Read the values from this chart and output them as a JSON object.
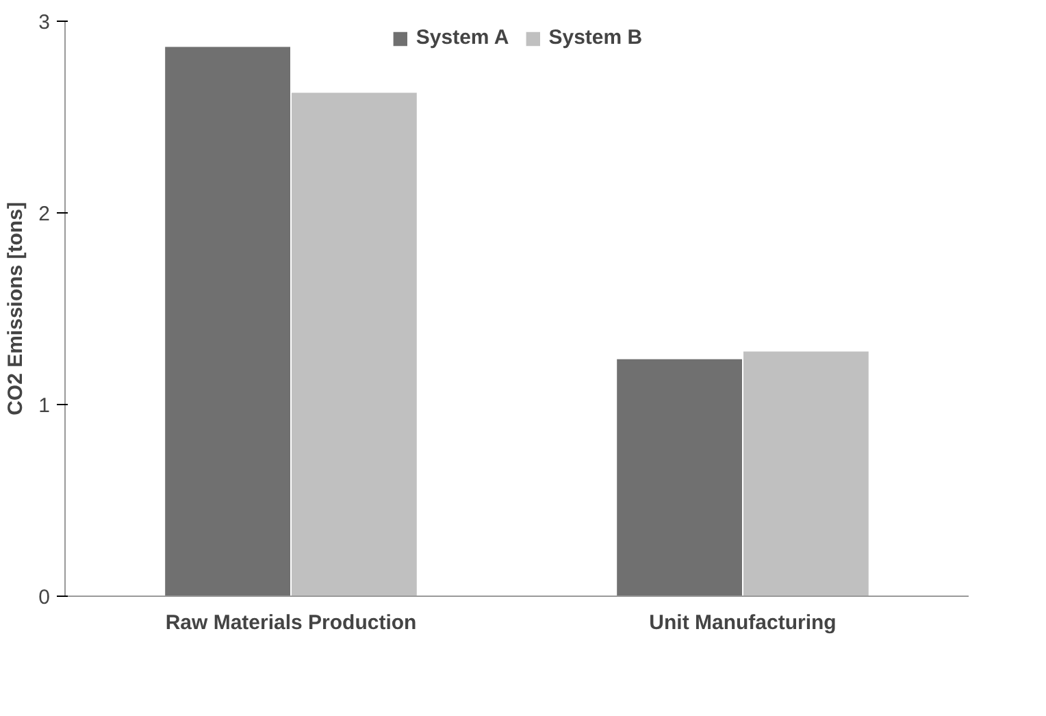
{
  "chart_data": {
    "type": "bar",
    "ylabel": "CO2 Emissions [tons]",
    "categories": [
      "Raw Materials Production",
      "Unit Manufacturing"
    ],
    "series": [
      {
        "name": "System A",
        "color": "#707070",
        "values": [
          2.87,
          1.24
        ]
      },
      {
        "name": "System B",
        "color": "#c0c0c0",
        "values": [
          2.63,
          1.28
        ]
      }
    ],
    "ylim": [
      0,
      3
    ],
    "yticks": [
      0,
      1,
      2,
      3
    ],
    "grid": false,
    "legend": "top"
  }
}
